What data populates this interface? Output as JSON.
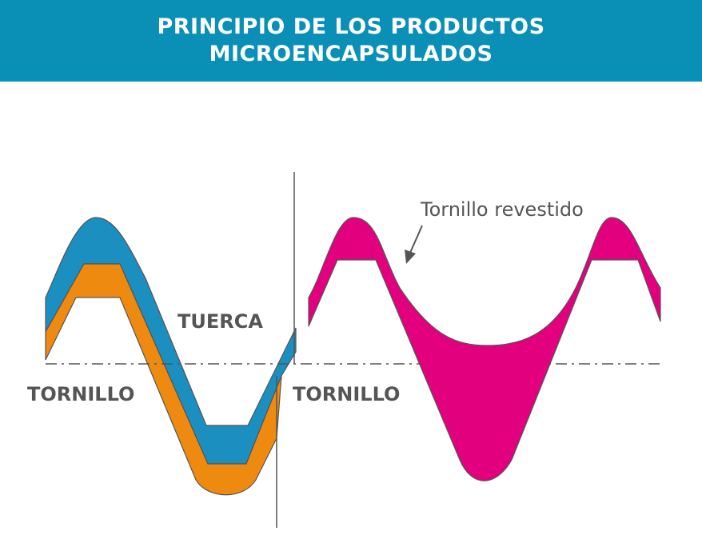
{
  "header": {
    "title_line1": "PRINCIPIO DE LOS PRODUCTOS",
    "title_line2": "MICROENCAPSULADOS"
  },
  "diagram": {
    "left_panel": {
      "nut_label": "TUERCA",
      "screw_label": "TORNILLO"
    },
    "right_panel": {
      "screw_label": "TORNILLO",
      "callout_label": "Tornillo revestido"
    }
  },
  "colors": {
    "header_bg": "#0a8fb7",
    "nut_blue": "#1a8fc0",
    "screw_orange": "#ef8a10",
    "coating_magenta": "#e3007e",
    "outline": "#555555",
    "label_gray": "#555555"
  }
}
